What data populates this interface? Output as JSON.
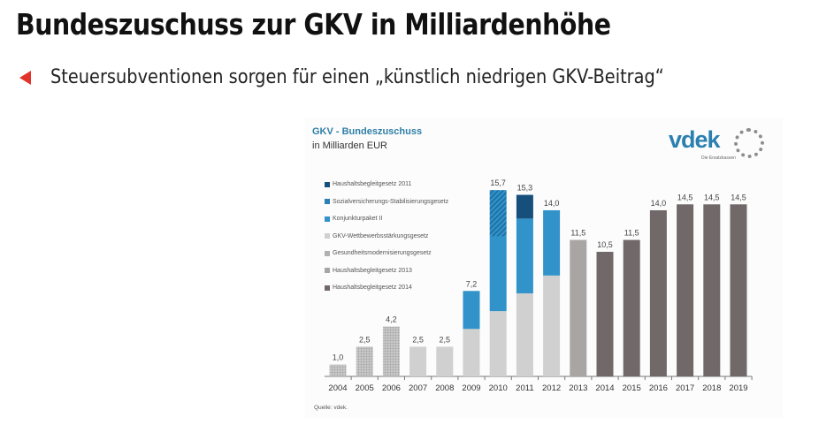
{
  "slide": {
    "title": "Bundeszuschuss zur GKV in Milliardenhöhe",
    "bullet": "Steuersubventionen sorgen für einen „künstlich niedrigen GKV-Beitrag“"
  },
  "logo": {
    "name": "vdek",
    "tagline": "Die Ersatzkassen"
  },
  "chart_data": {
    "type": "bar",
    "stacked": true,
    "title": "GKV - Bundeszuschuss",
    "subtitle": "in Milliarden EUR",
    "source": "Quelle: vdek.",
    "categories": [
      "2004",
      "2005",
      "2006",
      "2007",
      "2008",
      "2009",
      "2010",
      "2011",
      "2012",
      "2013",
      "2014",
      "2015",
      "2016",
      "2017",
      "2018",
      "2019"
    ],
    "totals": [
      1.0,
      2.5,
      4.2,
      2.5,
      2.5,
      7.2,
      15.7,
      15.3,
      14.0,
      11.5,
      10.5,
      11.5,
      14.0,
      14.5,
      14.5,
      14.5
    ],
    "total_labels": [
      "1,0",
      "2,5",
      "4,2",
      "2,5",
      "2,5",
      "7,2",
      "15,7",
      "15,3",
      "14,0",
      "11,5",
      "10,5",
      "11,5",
      "14,0",
      "14,5",
      "14,5",
      "14,5"
    ],
    "ylim": [
      0,
      16
    ],
    "legend_position": "top-left",
    "series": [
      {
        "name": "Gesundheitsmodernisierungsgesetz",
        "color": "#b9b9b9",
        "pattern": "grid",
        "values": [
          1.0,
          2.5,
          4.2,
          0,
          0,
          0,
          0,
          0,
          0,
          0,
          0,
          0,
          0,
          0,
          0,
          0
        ]
      },
      {
        "name": "GKV-Wettbewerbsstärkungsgesetz",
        "color": "#d0d0d0",
        "pattern": "solid",
        "values": [
          0,
          0,
          0,
          2.5,
          2.5,
          4.0,
          5.5,
          7.0,
          8.5,
          0,
          0,
          0,
          0,
          0,
          0,
          0
        ]
      },
      {
        "name": "Konjunkturpaket II",
        "color": "#3193c9",
        "pattern": "solid",
        "values": [
          0,
          0,
          0,
          0,
          0,
          3.2,
          6.3,
          6.3,
          5.5,
          0,
          0,
          0,
          0,
          0,
          0,
          0
        ]
      },
      {
        "name": "Sozialversicherungs-Stabilisierungsgesetz",
        "color": "#2a7fb5",
        "pattern": "hatch",
        "values": [
          0,
          0,
          0,
          0,
          0,
          0,
          3.9,
          0,
          0,
          0,
          0,
          0,
          0,
          0,
          0,
          0
        ]
      },
      {
        "name": "Haushaltsbegleitgesetz 2011",
        "color": "#174f7c",
        "pattern": "solid",
        "values": [
          0,
          0,
          0,
          0,
          0,
          0,
          0,
          2.0,
          0,
          0,
          0,
          0,
          0,
          0,
          0,
          0
        ]
      },
      {
        "name": "Haushaltsbegleitgesetz 2013",
        "color": "#a9a5a5",
        "pattern": "solid",
        "values": [
          0,
          0,
          0,
          0,
          0,
          0,
          0,
          0,
          0,
          11.5,
          0,
          0,
          0,
          0,
          0,
          0
        ]
      },
      {
        "name": "Haushaltsbegleitgesetz 2014",
        "color": "#716969",
        "pattern": "solid",
        "values": [
          0,
          0,
          0,
          0,
          0,
          0,
          0,
          0,
          0,
          0,
          10.5,
          11.5,
          14.0,
          14.5,
          14.5,
          14.5
        ]
      }
    ],
    "legend_order": [
      4,
      3,
      2,
      1,
      0,
      5,
      6
    ]
  }
}
